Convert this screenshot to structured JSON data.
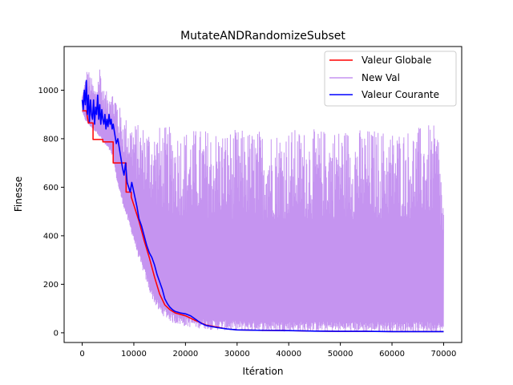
{
  "chart_data": {
    "type": "line",
    "title": "MutateANDRandomizeSubset",
    "xlabel": "Itération",
    "ylabel": "Finesse",
    "xlim": [
      -3500,
      73500
    ],
    "ylim": [
      -40,
      1180
    ],
    "xticks": [
      0,
      10000,
      20000,
      30000,
      40000,
      50000,
      60000,
      70000
    ],
    "yticks": [
      0,
      200,
      400,
      600,
      800,
      1000
    ],
    "xtick_labels": [
      "0",
      "10000",
      "20000",
      "30000",
      "40000",
      "50000",
      "60000",
      "70000"
    ],
    "ytick_labels": [
      "0",
      "200",
      "400",
      "600",
      "800",
      "1000"
    ],
    "legend_position": "top-right",
    "grid": false,
    "series": [
      {
        "name": "Valeur Globale",
        "color": "#ff0000",
        "x": [
          0,
          800,
          1200,
          2100,
          2100,
          4000,
          4000,
          6000,
          6000,
          8500,
          8500,
          9500,
          9500,
          11000,
          12000,
          13000,
          14000,
          15000,
          16000,
          17000,
          18000,
          20000,
          22000,
          24000,
          26000,
          28000,
          30000,
          35000,
          40000,
          45000,
          50000,
          55000,
          60000,
          65000,
          70000
        ],
        "y": [
          915,
          915,
          865,
          865,
          797,
          797,
          787,
          787,
          700,
          700,
          580,
          580,
          560,
          460,
          380,
          310,
          230,
          160,
          115,
          95,
          82,
          70,
          50,
          32,
          24,
          16,
          12,
          10,
          9,
          7,
          6,
          6,
          5,
          5,
          5
        ]
      },
      {
        "name": "New Val",
        "color": "#c594f0",
        "envelope": {
          "x": [
            0,
            500,
            1000,
            1500,
            2000,
            2500,
            3000,
            3500,
            4000,
            4500,
            5000,
            5500,
            6000,
            6500,
            7000,
            7500,
            8000,
            9000,
            10000,
            11000,
            12000,
            13000,
            14000,
            15000,
            17500,
            20000,
            25000,
            30000,
            35000,
            40000,
            45000,
            50000,
            55000,
            60000,
            65000,
            67000,
            69000,
            70000
          ],
          "upper": [
            985,
            1040,
            1100,
            1070,
            1040,
            1010,
            1060,
            1125,
            1010,
            1000,
            990,
            1040,
            990,
            1000,
            950,
            920,
            900,
            880,
            870,
            860,
            860,
            860,
            850,
            855,
            850,
            845,
            845,
            840,
            840,
            845,
            840,
            850,
            845,
            840,
            850,
            860,
            850,
            540
          ],
          "lower": [
            910,
            880,
            860,
            850,
            840,
            830,
            820,
            800,
            790,
            770,
            760,
            740,
            720,
            650,
            600,
            560,
            520,
            450,
            380,
            300,
            240,
            170,
            120,
            80,
            40,
            25,
            12,
            8,
            6,
            5,
            4,
            4,
            3,
            3,
            3,
            3,
            3,
            3
          ]
        }
      },
      {
        "name": "Valeur Courante",
        "color": "#0000ff",
        "x": [
          0,
          200,
          400,
          600,
          800,
          1000,
          1200,
          1400,
          1600,
          1800,
          2000,
          2200,
          2400,
          2600,
          2800,
          3000,
          3200,
          3400,
          3600,
          3800,
          4000,
          4200,
          4400,
          4600,
          4800,
          5000,
          5200,
          5400,
          5600,
          5800,
          6000,
          6300,
          6600,
          6900,
          7200,
          7500,
          7800,
          8100,
          8400,
          8700,
          9000,
          9300,
          9600,
          9900,
          10200,
          10600,
          11000,
          11500,
          12000,
          12500,
          13000,
          13500,
          14000,
          14500,
          15000,
          15500,
          16000,
          16500,
          17000,
          17500,
          18000,
          19000,
          20000,
          21000,
          22000,
          23000,
          24000,
          26000,
          28000,
          30000,
          35000,
          40000,
          45000,
          50000,
          55000,
          60000,
          65000,
          70000
        ],
        "y": [
          960,
          920,
          1000,
          940,
          1040,
          900,
          980,
          870,
          960,
          900,
          880,
          960,
          860,
          930,
          900,
          980,
          880,
          940,
          860,
          920,
          880,
          860,
          900,
          840,
          880,
          850,
          900,
          860,
          880,
          840,
          860,
          820,
          780,
          800,
          760,
          720,
          680,
          650,
          700,
          620,
          600,
          580,
          620,
          590,
          560,
          520,
          470,
          440,
          400,
          360,
          330,
          310,
          280,
          240,
          210,
          180,
          140,
          120,
          105,
          95,
          88,
          82,
          78,
          70,
          55,
          40,
          30,
          22,
          16,
          12,
          10,
          9,
          7,
          6,
          6,
          5,
          5,
          5
        ]
      }
    ]
  }
}
